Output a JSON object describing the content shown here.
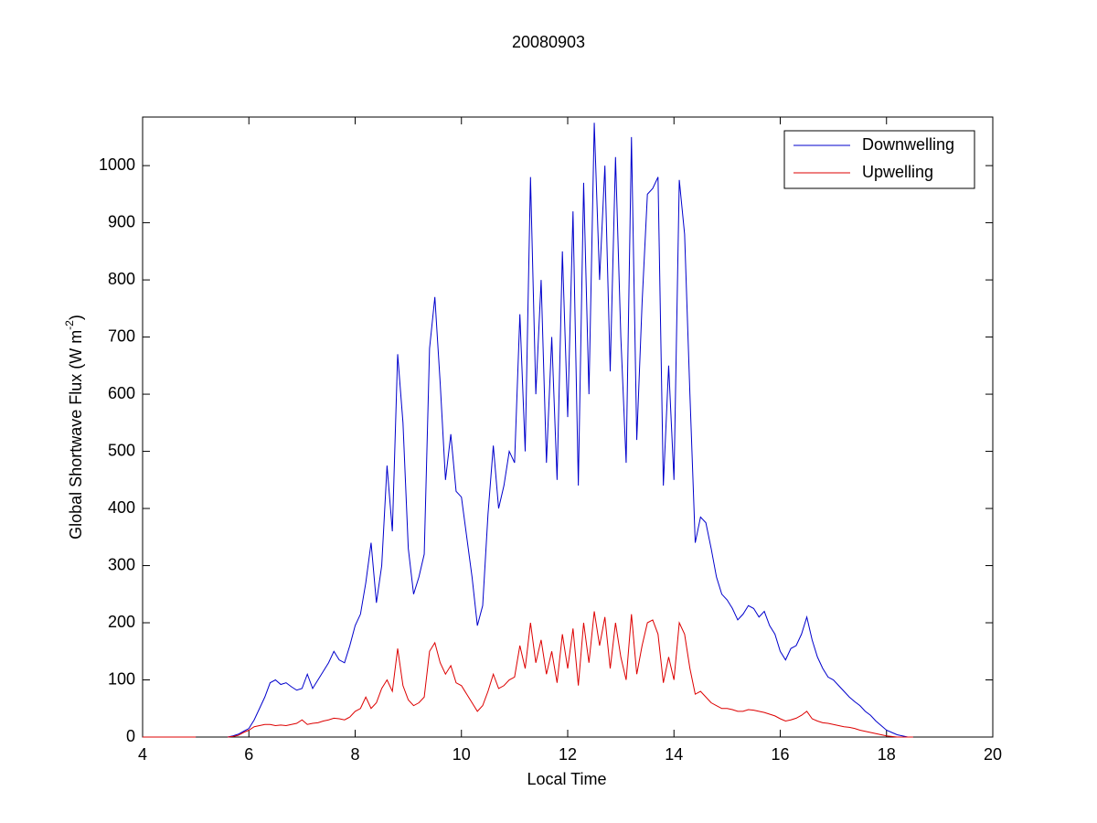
{
  "chart_data": {
    "type": "line",
    "title": "20080903",
    "xlabel": "Local Time",
    "ylabel_parts": [
      "Global Shortwave Flux (W m",
      "-2",
      ")"
    ],
    "xlim": [
      4,
      20
    ],
    "ylim": [
      0,
      1085
    ],
    "xticks": [
      4,
      6,
      8,
      10,
      12,
      14,
      16,
      18,
      20
    ],
    "yticks": [
      0,
      100,
      200,
      300,
      400,
      500,
      600,
      700,
      800,
      900,
      1000
    ],
    "legend_position": "upper right",
    "x": [
      4,
      4.1,
      4.2,
      4.3,
      4.4,
      4.5,
      4.6,
      4.7,
      4.8,
      4.9,
      5,
      5.1,
      5.2,
      5.3,
      5.4,
      5.5,
      5.6,
      5.7,
      5.8,
      5.9,
      6,
      6.1,
      6.2,
      6.3,
      6.4,
      6.5,
      6.6,
      6.7,
      6.8,
      6.9,
      7,
      7.1,
      7.2,
      7.3,
      7.4,
      7.5,
      7.6,
      7.7,
      7.8,
      7.9,
      8,
      8.1,
      8.2,
      8.3,
      8.4,
      8.5,
      8.6,
      8.7,
      8.8,
      8.9,
      9,
      9.1,
      9.2,
      9.3,
      9.4,
      9.5,
      9.6,
      9.7,
      9.8,
      9.9,
      10,
      10.1,
      10.2,
      10.3,
      10.4,
      10.5,
      10.6,
      10.7,
      10.8,
      10.9,
      11,
      11.1,
      11.2,
      11.3,
      11.4,
      11.5,
      11.6,
      11.7,
      11.8,
      11.9,
      12,
      12.1,
      12.2,
      12.3,
      12.4,
      12.5,
      12.6,
      12.7,
      12.8,
      12.9,
      13,
      13.1,
      13.2,
      13.3,
      13.4,
      13.5,
      13.6,
      13.7,
      13.8,
      13.9,
      14,
      14.1,
      14.2,
      14.3,
      14.4,
      14.5,
      14.6,
      14.7,
      14.8,
      14.9,
      15,
      15.1,
      15.2,
      15.3,
      15.4,
      15.5,
      15.6,
      15.7,
      15.8,
      15.9,
      16,
      16.1,
      16.2,
      16.3,
      16.4,
      16.5,
      16.6,
      16.7,
      16.8,
      16.9,
      17,
      17.1,
      17.2,
      17.3,
      17.4,
      17.5,
      17.6,
      17.7,
      17.8,
      17.9,
      18,
      18.1,
      18.2,
      18.3,
      18.4,
      18.5
    ],
    "series": [
      {
        "name": "Downwelling",
        "color": "#0000cc",
        "values": [
          0,
          0,
          0,
          0,
          0,
          0,
          0,
          0,
          0,
          0,
          0,
          null,
          null,
          null,
          null,
          null,
          0,
          2,
          5,
          10,
          15,
          30,
          50,
          70,
          95,
          100,
          92,
          95,
          88,
          82,
          85,
          110,
          85,
          100,
          115,
          130,
          150,
          135,
          130,
          160,
          195,
          215,
          270,
          340,
          235,
          300,
          475,
          360,
          670,
          550,
          330,
          250,
          280,
          320,
          680,
          770,
          620,
          450,
          530,
          430,
          420,
          350,
          280,
          195,
          230,
          390,
          510,
          400,
          440,
          500,
          480,
          740,
          500,
          980,
          600,
          800,
          480,
          700,
          450,
          850,
          560,
          920,
          440,
          970,
          600,
          1075,
          800,
          1000,
          640,
          1015,
          700,
          480,
          1050,
          520,
          760,
          950,
          960,
          980,
          440,
          650,
          450,
          975,
          880,
          600,
          340,
          385,
          375,
          330,
          280,
          250,
          240,
          225,
          205,
          215,
          230,
          225,
          210,
          220,
          195,
          180,
          150,
          135,
          155,
          160,
          180,
          210,
          170,
          140,
          120,
          105,
          100,
          90,
          80,
          70,
          62,
          55,
          45,
          38,
          28,
          20,
          12,
          8,
          4,
          2,
          0,
          0
        ]
      },
      {
        "name": "Upwelling",
        "color": "#dd0000",
        "values": [
          0,
          0,
          0,
          0,
          0,
          0,
          0,
          0,
          0,
          0,
          0,
          null,
          null,
          null,
          null,
          null,
          0,
          1,
          3,
          8,
          12,
          18,
          20,
          22,
          22,
          20,
          21,
          20,
          22,
          24,
          30,
          22,
          24,
          25,
          28,
          30,
          33,
          32,
          30,
          35,
          45,
          50,
          70,
          50,
          60,
          85,
          100,
          80,
          155,
          90,
          65,
          55,
          60,
          70,
          150,
          165,
          130,
          110,
          125,
          95,
          90,
          75,
          60,
          45,
          55,
          80,
          110,
          85,
          90,
          100,
          105,
          160,
          120,
          200,
          130,
          170,
          110,
          150,
          95,
          180,
          120,
          190,
          90,
          200,
          130,
          220,
          160,
          210,
          120,
          200,
          140,
          100,
          215,
          110,
          160,
          200,
          205,
          180,
          95,
          140,
          100,
          200,
          180,
          120,
          75,
          80,
          70,
          60,
          55,
          50,
          50,
          48,
          45,
          45,
          48,
          47,
          45,
          43,
          40,
          37,
          32,
          28,
          30,
          33,
          38,
          45,
          32,
          28,
          25,
          24,
          22,
          20,
          18,
          17,
          15,
          12,
          10,
          8,
          6,
          4,
          2,
          1,
          0,
          0,
          0,
          0
        ]
      }
    ]
  }
}
